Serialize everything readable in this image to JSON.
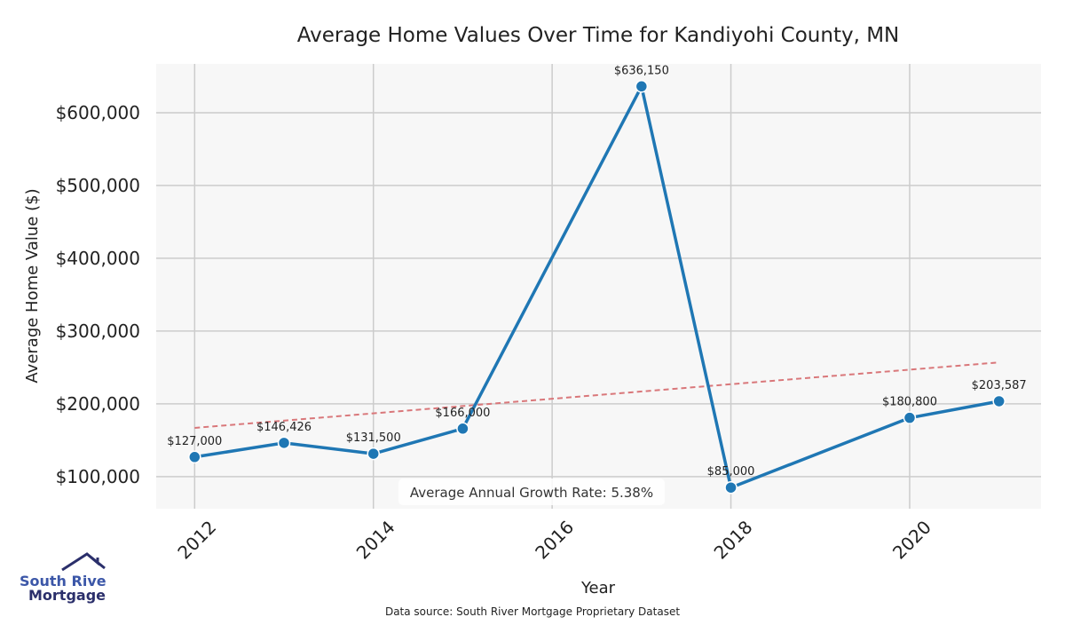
{
  "chart_data": {
    "type": "line",
    "title": "Average Home Values Over Time for Kandiyohi County, MN",
    "xlabel": "Year",
    "ylabel": "Average Home Value ($)",
    "x": [
      2012,
      2013,
      2014,
      2015,
      2017,
      2018,
      2020,
      2021
    ],
    "values": [
      127000,
      146426,
      131500,
      166000,
      636150,
      85000,
      180800,
      203587
    ],
    "data_labels": [
      "$127,000",
      "$146,426",
      "$131,500",
      "$166,000",
      "$636,150",
      "$85,000",
      "$180,800",
      "$203,587"
    ],
    "trend": {
      "x": [
        2012,
        2021
      ],
      "values": [
        167000,
        257000
      ]
    },
    "xticks": [
      2012,
      2014,
      2016,
      2018,
      2020
    ],
    "xtick_labels": [
      "2012",
      "2014",
      "2016",
      "2018",
      "2020"
    ],
    "yticks": [
      100000,
      200000,
      300000,
      400000,
      500000,
      600000
    ],
    "ytick_labels": [
      "$100,000",
      "$200,000",
      "$300,000",
      "$400,000",
      "$500,000",
      "$600,000"
    ],
    "xlim": [
      2011.57,
      2021.47
    ],
    "ylim": [
      56000,
      667000
    ],
    "grid": true,
    "annotation": "Average Annual Growth Rate: 5.38%",
    "line_color": "#1f77b4",
    "trend_color": "#d9777a"
  },
  "footer": {
    "source": "Data source: South River Mortgage Proprietary Dataset"
  },
  "logo": {
    "line1": "South River",
    "line2": "Mortgage"
  }
}
